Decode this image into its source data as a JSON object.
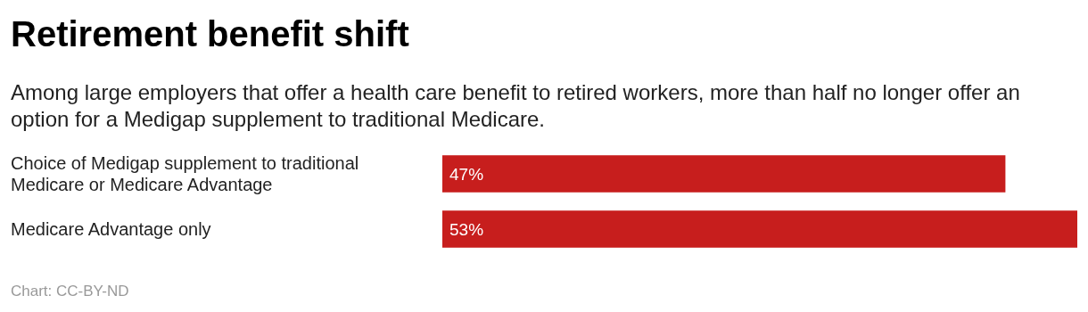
{
  "chart_data": {
    "type": "bar",
    "orientation": "horizontal",
    "title": "Retirement benefit shift",
    "subtitle": "Among large employers that offer a health care benefit to retired workers, more than half no longer offer an option for a Medigap supplement to traditional Medicare.",
    "categories": [
      "Choice of Medigap supplement to traditional Medicare or Medicare Advantage",
      "Medicare Advantage only"
    ],
    "values": [
      47,
      53
    ],
    "color": "#c71e1d",
    "data_labels": true,
    "value_labels": [
      "47%",
      "53%"
    ],
    "annotations": [
      "Chart: CC-BY-ND"
    ]
  }
}
